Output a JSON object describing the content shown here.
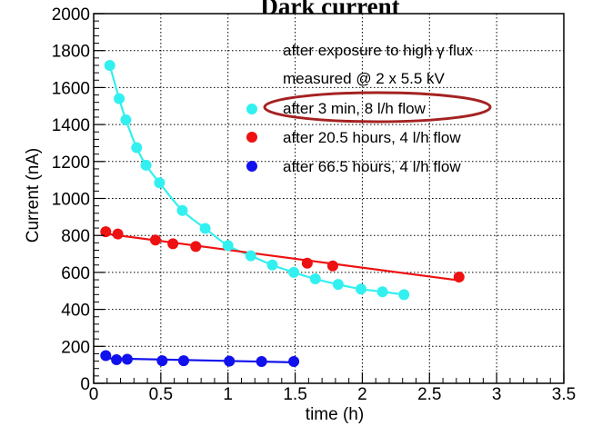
{
  "chart_data": {
    "type": "scatter",
    "title": "Dark current",
    "xlabel": "time (h)",
    "ylabel": "Current (nA)",
    "xlim": [
      0,
      3.5
    ],
    "ylim": [
      0,
      2000
    ],
    "x_ticks": [
      "0",
      "0.5",
      "1",
      "1.5",
      "2",
      "2.5",
      "3",
      "3.5"
    ],
    "y_ticks": [
      "0",
      "200",
      "400",
      "600",
      "800",
      "1000",
      "1200",
      "1400",
      "1600",
      "1800",
      "2000"
    ],
    "grid": true,
    "legend_position": "top-right",
    "legend_header": [
      "after exposure to high γ flux",
      "measured @ 2 x 5.5 kV"
    ],
    "series": [
      {
        "name": "after 3 min, 8 l/h flow",
        "color": "#33f0f0",
        "fit": "exponential",
        "points": [
          {
            "x": 0.12,
            "y": 1720
          },
          {
            "x": 0.19,
            "y": 1540
          },
          {
            "x": 0.24,
            "y": 1425
          },
          {
            "x": 0.32,
            "y": 1275
          },
          {
            "x": 0.39,
            "y": 1180
          },
          {
            "x": 0.49,
            "y": 1085
          },
          {
            "x": 0.66,
            "y": 935
          },
          {
            "x": 0.83,
            "y": 838
          },
          {
            "x": 1.0,
            "y": 745
          },
          {
            "x": 1.17,
            "y": 690
          },
          {
            "x": 1.33,
            "y": 640
          },
          {
            "x": 1.49,
            "y": 600
          },
          {
            "x": 1.65,
            "y": 565
          },
          {
            "x": 1.82,
            "y": 535
          },
          {
            "x": 1.99,
            "y": 510
          },
          {
            "x": 2.15,
            "y": 495
          },
          {
            "x": 2.31,
            "y": 480
          }
        ]
      },
      {
        "name": "after 20.5 hours, 4 l/h flow",
        "color": "#ee1111",
        "fit": "linear",
        "points": [
          {
            "x": 0.09,
            "y": 820
          },
          {
            "x": 0.18,
            "y": 808
          },
          {
            "x": 0.46,
            "y": 775
          },
          {
            "x": 0.59,
            "y": 755
          },
          {
            "x": 0.76,
            "y": 740
          },
          {
            "x": 1.59,
            "y": 650
          },
          {
            "x": 1.78,
            "y": 635
          },
          {
            "x": 2.72,
            "y": 575
          }
        ]
      },
      {
        "name": "after 66.5 hours, 4 l/h flow",
        "color": "#1111ee",
        "fit": "linear",
        "points": [
          {
            "x": 0.09,
            "y": 150
          },
          {
            "x": 0.17,
            "y": 128
          },
          {
            "x": 0.25,
            "y": 130
          },
          {
            "x": 0.51,
            "y": 122
          },
          {
            "x": 0.67,
            "y": 122
          },
          {
            "x": 1.01,
            "y": 120
          },
          {
            "x": 1.25,
            "y": 118
          },
          {
            "x": 1.49,
            "y": 118
          }
        ]
      }
    ]
  }
}
